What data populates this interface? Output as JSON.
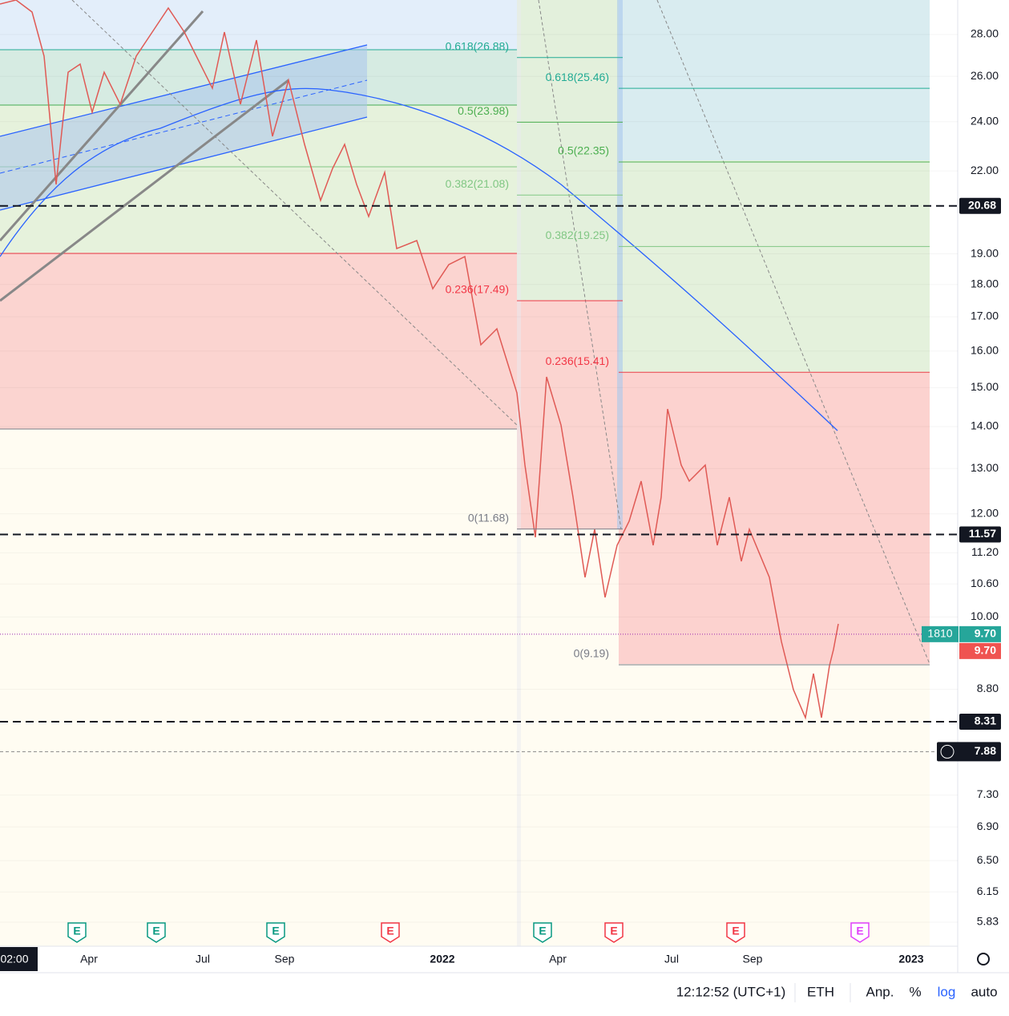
{
  "price_axis": {
    "scale": "log",
    "ticks": [
      {
        "value": 28,
        "label": "28.00"
      },
      {
        "value": 26,
        "label": "26.00"
      },
      {
        "value": 24,
        "label": "24.00"
      },
      {
        "value": 22,
        "label": "22.00"
      },
      {
        "value": 19,
        "label": "19.00"
      },
      {
        "value": 18,
        "label": "18.00"
      },
      {
        "value": 17,
        "label": "17.00"
      },
      {
        "value": 16,
        "label": "16.00"
      },
      {
        "value": 15,
        "label": "15.00"
      },
      {
        "value": 14,
        "label": "14.00"
      },
      {
        "value": 13,
        "label": "13.00"
      },
      {
        "value": 12,
        "label": "12.00"
      },
      {
        "value": 11.2,
        "label": "11.20"
      },
      {
        "value": 10.6,
        "label": "10.60"
      },
      {
        "value": 10,
        "label": "10.00"
      },
      {
        "value": 8.8,
        "label": "8.80"
      },
      {
        "value": 7.3,
        "label": "7.30"
      },
      {
        "value": 6.9,
        "label": "6.90"
      },
      {
        "value": 6.5,
        "label": "6.50"
      },
      {
        "value": 6.15,
        "label": "6.15"
      },
      {
        "value": 5.83,
        "label": "5.83"
      }
    ]
  },
  "horizontal_levels": [
    {
      "value": 20.68,
      "label": "20.68"
    },
    {
      "value": 11.57,
      "label": "11.57"
    },
    {
      "value": 8.31,
      "label": "8.31"
    }
  ],
  "crosshair": {
    "value": 7.88,
    "label": "7.88"
  },
  "last_price": {
    "value": 9.7,
    "label": "9.70",
    "volume": 1810,
    "close_label": "9.70"
  },
  "fib_left": [
    {
      "label": "0.618(26.88)",
      "price": 26.88,
      "color": "#22ab94"
    },
    {
      "label": "0.5(23.98)",
      "price": 23.98,
      "color": "#4caf50"
    },
    {
      "label": "0.382(21.08)",
      "price": 21.08,
      "color": "#81c784"
    },
    {
      "label": "0.236(17.49)",
      "price": 17.49,
      "color": "#f23645"
    },
    {
      "label": "0(11.68)",
      "price": 11.68,
      "color": "#787b86"
    }
  ],
  "fib_right": [
    {
      "label": "0.618(25.46)",
      "price": 25.46,
      "color": "#22ab94"
    },
    {
      "label": "0.5(22.35)",
      "price": 22.35,
      "color": "#4caf50"
    },
    {
      "label": "0.382(19.25)",
      "price": 19.25,
      "color": "#81c784"
    },
    {
      "label": "0.236(15.41)",
      "price": 15.41,
      "color": "#f23645"
    },
    {
      "label": "0(9.19)",
      "price": 9.19,
      "color": "#787b86"
    }
  ],
  "time_axis": [
    "02:00",
    "Apr",
    "Jul",
    "Sep",
    "2022",
    "Apr",
    "Jul",
    "Sep",
    "2023"
  ],
  "earnings": [
    "E",
    "E",
    "E",
    "E",
    "E",
    "E",
    "E",
    "E"
  ],
  "status_bar": {
    "time": "12:12:52 (UTC+1)",
    "currency": "ETH",
    "adjust": "Anp.",
    "percent": "%",
    "log": "log",
    "auto": "auto"
  }
}
